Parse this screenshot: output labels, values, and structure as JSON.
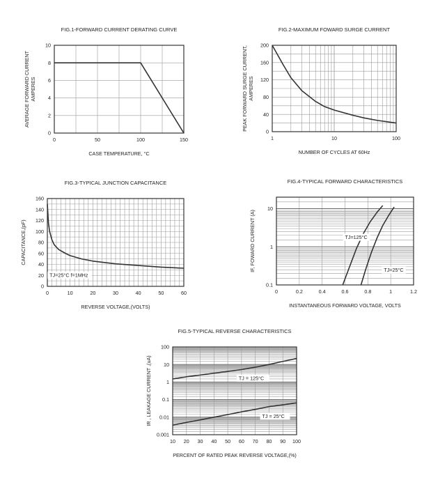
{
  "charts": [
    {
      "type": "line",
      "title": "FIG.1-FORWARD CURRENT DERATING CURVE",
      "xlabel": "CASE TEMPERATURE, °C",
      "ylabel_lines": [
        "AVERAGE FORWARD CURRENT",
        "AMPERES"
      ],
      "x_scale": "linear",
      "y_scale": "linear",
      "xlim": [
        0,
        150
      ],
      "ylim": [
        0,
        10
      ],
      "x_ticks": [
        0,
        50,
        100,
        150
      ],
      "y_ticks": [
        0,
        2,
        4,
        6,
        8,
        10
      ],
      "x_grid": [
        0,
        25,
        50,
        75,
        100,
        125,
        150
      ],
      "y_grid": [
        0,
        2,
        4,
        6,
        8,
        10
      ],
      "grid": true,
      "series": [
        {
          "x": [
            0,
            100,
            150
          ],
          "y": [
            8,
            8,
            0
          ]
        }
      ],
      "annotations": []
    },
    {
      "type": "line",
      "title": "FIG.2-MAXIMUM FOWARD SURGE CURRENT",
      "xlabel": "NUMBER OF CYCLES AT 60Hz",
      "ylabel_lines": [
        "PEAK FORWARD SURGE CURRENT,",
        "AMPERES"
      ],
      "x_scale": "log",
      "y_scale": "linear",
      "xlim": [
        1,
        100
      ],
      "ylim": [
        0,
        200
      ],
      "x_ticks": [
        1,
        10,
        100
      ],
      "y_ticks": [
        0,
        40,
        80,
        120,
        160,
        200
      ],
      "y_grid": [
        0,
        20,
        40,
        60,
        80,
        100,
        120,
        140,
        160,
        180,
        200
      ],
      "grid": true,
      "series": [
        {
          "x": [
            1,
            1.5,
            2,
            3,
            5,
            7,
            10,
            20,
            30,
            50,
            100
          ],
          "y": [
            200,
            155,
            125,
            95,
            70,
            58,
            50,
            38,
            32,
            26,
            20
          ]
        }
      ],
      "annotations": []
    },
    {
      "type": "line",
      "title": "FIG.3-TYPICAL JUNCTION CAPACITANCE",
      "xlabel": "REVERSE VOLTAGE,(VOLTS)",
      "ylabel_lines": [
        "CAPACITANCE,(pF)"
      ],
      "x_scale": "linear",
      "y_scale": "linear",
      "xlim": [
        0,
        60
      ],
      "ylim": [
        0,
        160
      ],
      "x_ticks": [
        0,
        10,
        20,
        30,
        40,
        50,
        60
      ],
      "y_ticks": [
        0,
        20,
        40,
        60,
        80,
        100,
        120,
        140,
        160
      ],
      "x_grid": [
        0,
        2,
        4,
        6,
        8,
        10,
        12,
        14,
        16,
        18,
        20,
        22,
        24,
        26,
        28,
        30,
        32,
        34,
        36,
        38,
        40,
        42,
        44,
        46,
        48,
        50,
        52,
        54,
        56,
        58,
        60
      ],
      "y_grid": [
        0,
        10,
        20,
        30,
        40,
        50,
        60,
        70,
        80,
        90,
        100,
        110,
        120,
        130,
        140,
        150,
        160
      ],
      "grid": true,
      "series": [
        {
          "x": [
            0,
            0.5,
            1,
            2,
            3,
            5,
            8,
            10,
            15,
            20,
            30,
            40,
            50,
            60
          ],
          "y": [
            150,
            115,
            100,
            85,
            76,
            67,
            60,
            56,
            50,
            46,
            41,
            38,
            35,
            33
          ]
        }
      ],
      "annotations": [
        {
          "text": "TJ=25°C f=1MHz",
          "at": [
            1,
            17
          ]
        }
      ]
    },
    {
      "type": "line",
      "title": "FIG.4-TYPICAL FORWARD CHARACTERISTICS",
      "xlabel": "INSTANTANEOUS FORWARD VOLTAGE, VOLTS",
      "ylabel_lines": [
        "IF, FOWARD CURRENT (A)"
      ],
      "x_scale": "linear",
      "y_scale": "log",
      "xlim": [
        0,
        1.2
      ],
      "ylim": [
        0.1,
        20
      ],
      "x_ticks": [
        0,
        0.2,
        0.4,
        0.6,
        0.8,
        1,
        1.2
      ],
      "x_tick_labels": [
        "0",
        "0.2",
        "0.4",
        "0.6",
        "0.8",
        "1",
        "1.2"
      ],
      "y_ticks": [
        0.1,
        1,
        10
      ],
      "y_tick_labels": [
        "0.1",
        "1",
        "10"
      ],
      "x_grid": [
        0,
        0.2,
        0.4,
        0.6,
        0.8,
        1,
        1.2
      ],
      "grid": true,
      "series": [
        {
          "x": [
            0.58,
            0.64,
            0.7,
            0.76,
            0.82,
            0.88,
            0.93
          ],
          "y": [
            0.1,
            0.3,
            0.9,
            2.2,
            4.5,
            8,
            12
          ]
        },
        {
          "x": [
            0.74,
            0.78,
            0.83,
            0.88,
            0.93,
            0.98,
            1.03
          ],
          "y": [
            0.1,
            0.25,
            0.7,
            1.7,
            3.6,
            6.5,
            11
          ]
        }
      ],
      "annotations": [
        {
          "text": "TJ=125°C",
          "at": [
            0.6,
            1.6
          ]
        },
        {
          "text": "TJ=25°C",
          "at": [
            0.94,
            0.22
          ]
        }
      ]
    },
    {
      "type": "line",
      "title": "FIG.5-TYPICAL REVERSE CHARACTERISTICS",
      "xlabel": "PERCENT OF RATED PEAK REVERSE VOLTAGE,(%)",
      "ylabel_lines": [
        "IR , LEAKAGE  CURRENT ,(uA)"
      ],
      "x_scale": "linear",
      "y_scale": "log",
      "xlim": [
        10,
        100
      ],
      "ylim": [
        0.001,
        100
      ],
      "x_ticks": [
        10,
        20,
        30,
        40,
        50,
        60,
        70,
        80,
        90,
        100
      ],
      "y_ticks": [
        0.001,
        0.01,
        0.1,
        1,
        10,
        100
      ],
      "y_tick_labels": [
        "0.001",
        "0.01",
        "0.1",
        "1",
        "10",
        "100"
      ],
      "x_grid": [
        10,
        20,
        30,
        40,
        50,
        60,
        70,
        80,
        90,
        100
      ],
      "grid": true,
      "series": [
        {
          "x": [
            10,
            20,
            30,
            40,
            50,
            60,
            70,
            80,
            90,
            100
          ],
          "y": [
            1.5,
            2,
            2.5,
            3.2,
            4,
            5.2,
            7,
            10,
            15,
            22
          ]
        },
        {
          "x": [
            10,
            20,
            30,
            40,
            50,
            60,
            70,
            80,
            90,
            100
          ],
          "y": [
            0.0035,
            0.005,
            0.007,
            0.01,
            0.014,
            0.02,
            0.028,
            0.04,
            0.05,
            0.065
          ]
        }
      ],
      "annotations": [
        {
          "text": "TJ = 125°C",
          "at": [
            58,
            1.3
          ]
        },
        {
          "text": "TJ = 25°C",
          "at": [
            75,
            0.009
          ]
        }
      ]
    }
  ]
}
